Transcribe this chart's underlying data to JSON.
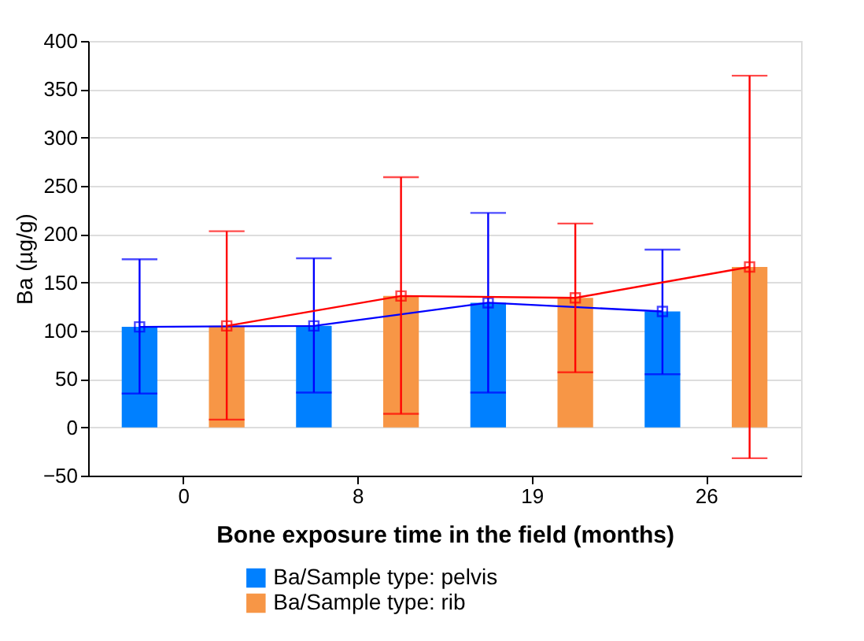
{
  "chart_data": {
    "type": "bar",
    "xlabel": "Bone exposure time in the field (months)",
    "ylabel": "Ba (µg/g)",
    "categories": [
      "0",
      "8",
      "19",
      "26"
    ],
    "series": [
      {
        "name": "Ba/Sample type: pelvis",
        "color": "#0080ff",
        "values": [
          104,
          105,
          129,
          120
        ]
      },
      {
        "name": "Ba/Sample type: rib",
        "color": "#f79646",
        "values": [
          105,
          136,
          134,
          166
        ]
      },
      {
        "type": "line",
        "color": "#0000ff",
        "values": [
          104,
          105,
          129,
          120
        ],
        "errors": [
          [
            35,
            174
          ],
          [
            36,
            175
          ],
          [
            36,
            222
          ],
          [
            55,
            184
          ]
        ]
      },
      {
        "type": "line",
        "color": "#ff0000",
        "values": [
          105,
          136,
          134,
          166
        ],
        "errors": [
          [
            8,
            203
          ],
          [
            14,
            259
          ],
          [
            57,
            211
          ],
          [
            -32,
            364
          ]
        ]
      }
    ],
    "ylim": [
      -50,
      400
    ],
    "yticks": [
      -50,
      0,
      50,
      100,
      150,
      200,
      250,
      300,
      350,
      400
    ],
    "grid": "y",
    "legend": "bottom",
    "marker": "square",
    "line_style": "solid"
  }
}
